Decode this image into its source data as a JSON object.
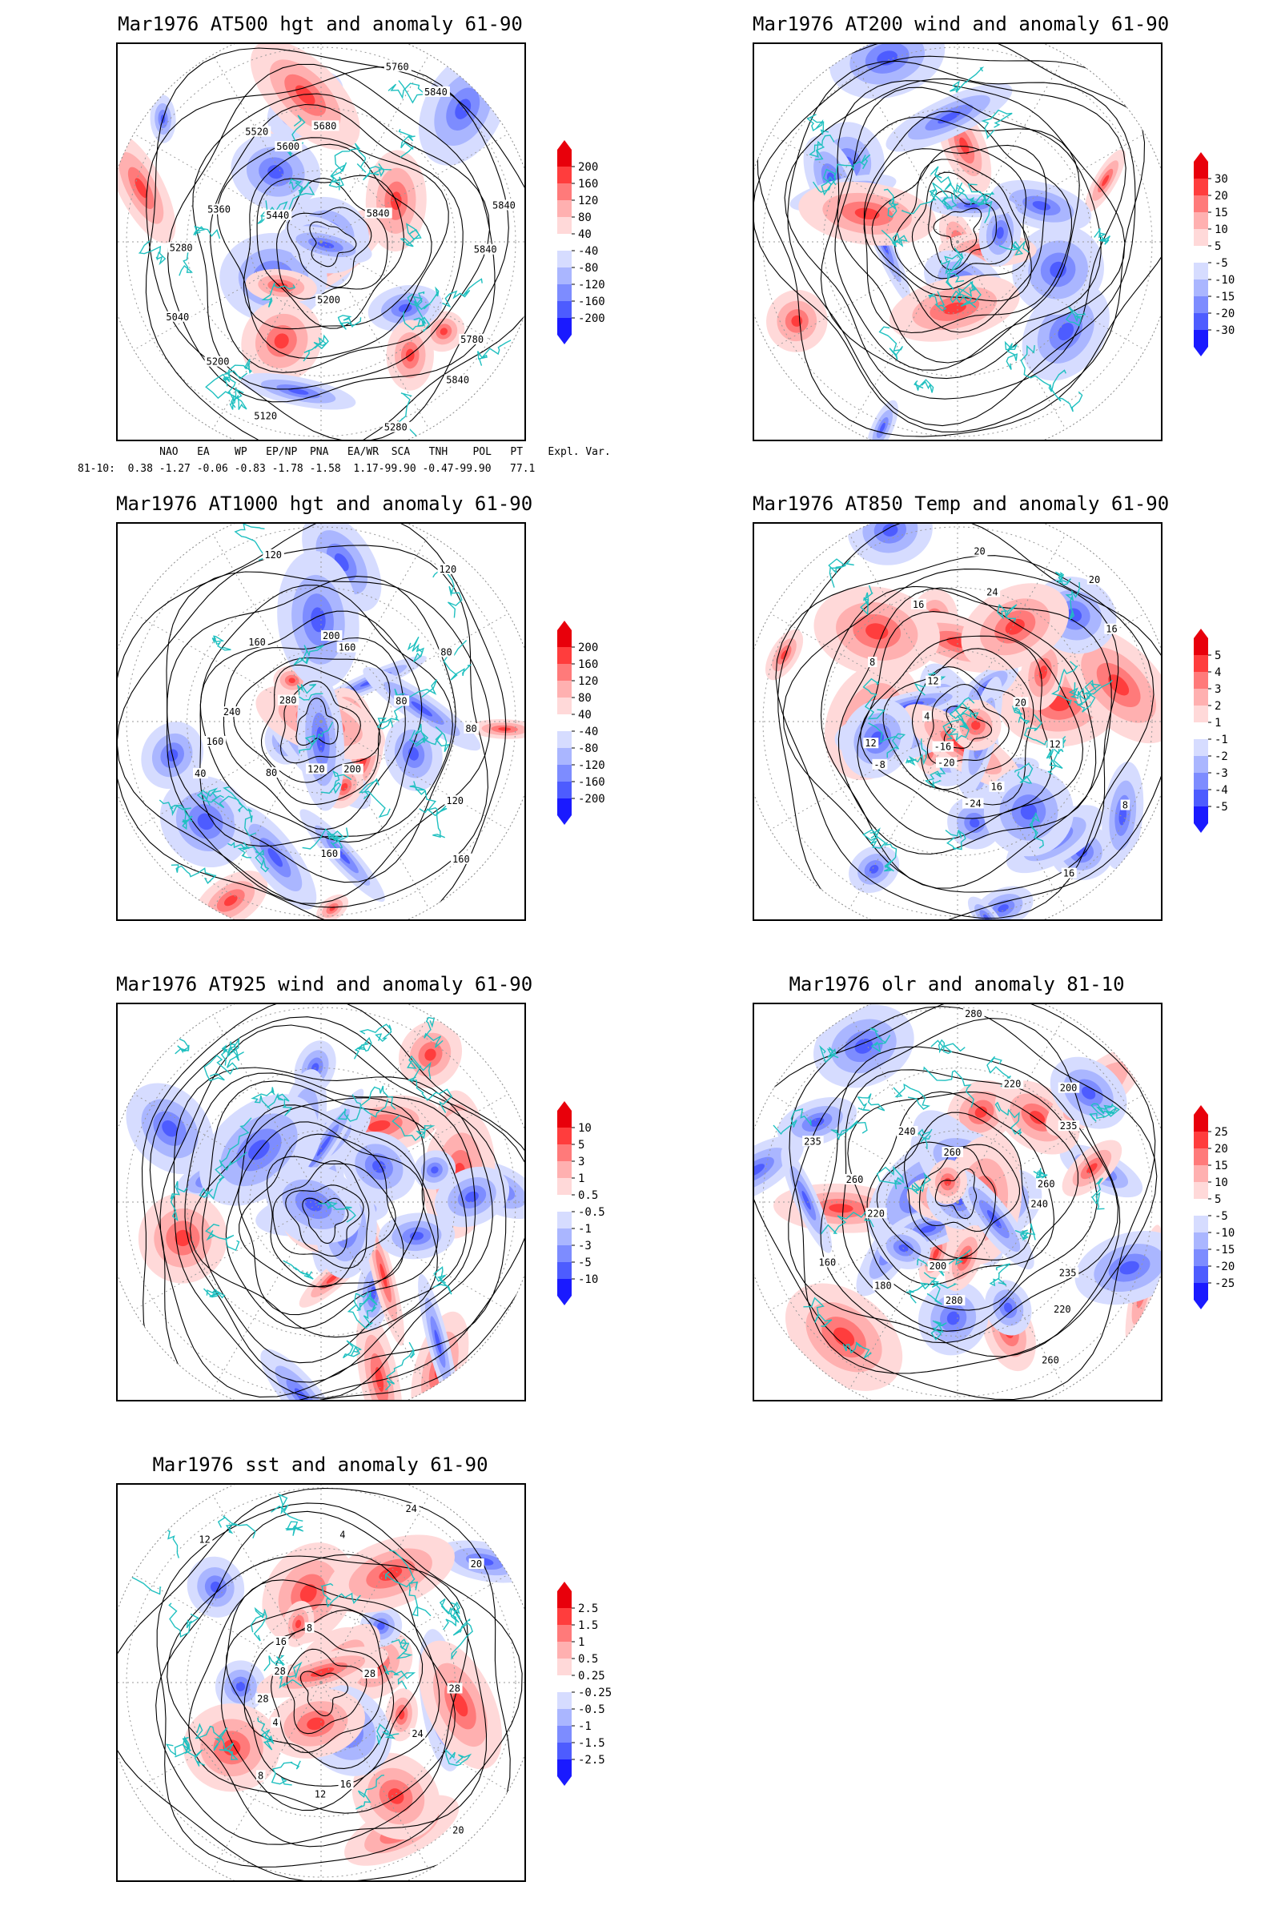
{
  "panels": [
    {
      "id": "p500",
      "title": "Mar1976 AT500 hgt and anomaly 61-90",
      "colorbar_labels": [
        "200",
        "160",
        "120",
        "80",
        "40",
        "-40",
        "-80",
        "-120",
        "-160",
        "-200"
      ],
      "contour_labels": [
        "5840",
        "5780",
        "5840",
        "5280",
        "5200",
        "5120",
        "5200",
        "5040",
        "5280",
        "5360",
        "5440",
        "5520",
        "5600",
        "5680",
        "5760",
        "5840",
        "5840",
        "5840"
      ],
      "variant": "hgt500"
    },
    {
      "id": "p200",
      "title": "Mar1976 AT200 wind and anomaly 61-90",
      "colorbar_labels": [
        "30",
        "20",
        "15",
        "10",
        "5",
        "-5",
        "-10",
        "-15",
        "-20",
        "-30"
      ],
      "contour_labels": [],
      "variant": "wind200"
    },
    {
      "id": "p1000",
      "title": "Mar1976 AT1000 hgt and anomaly 61-90",
      "colorbar_labels": [
        "200",
        "160",
        "120",
        "80",
        "40",
        "-40",
        "-80",
        "-120",
        "-160",
        "-200"
      ],
      "contour_labels": [
        "80",
        "120",
        "160",
        "200",
        "160",
        "120",
        "80",
        "40",
        "160",
        "240",
        "280",
        "160",
        "120",
        "200",
        "160",
        "120",
        "80",
        "80"
      ],
      "variant": "hgt1000"
    },
    {
      "id": "p850",
      "title": "Mar1976 AT850 Temp and anomaly 61-90",
      "colorbar_labels": [
        "5",
        "4",
        "3",
        "2",
        "1",
        "-1",
        "-2",
        "-3",
        "-4",
        "-5"
      ],
      "contour_labels": [
        "12",
        "8",
        "16",
        "16",
        "-24",
        "-20",
        "-16",
        "-8",
        "12",
        "4",
        "8",
        "12",
        "16",
        "20",
        "24",
        "20",
        "16",
        "20"
      ],
      "variant": "temp850"
    },
    {
      "id": "p925",
      "title": "Mar1976 AT925 wind and anomaly 61-90",
      "colorbar_labels": [
        "10",
        "5",
        "3",
        "1",
        "0.5",
        "-0.5",
        "-1",
        "-3",
        "-5",
        "-10"
      ],
      "contour_labels": [],
      "variant": "wind925"
    },
    {
      "id": "polr",
      "title": "Mar1976 olr and anomaly 81-10",
      "colorbar_labels": [
        "25",
        "20",
        "15",
        "10",
        "5",
        "-5",
        "-10",
        "-15",
        "-20",
        "-25"
      ],
      "contour_labels": [
        "240",
        "235",
        "220",
        "260",
        "280",
        "200",
        "180",
        "160",
        "220",
        "260",
        "235",
        "240",
        "260",
        "280",
        "220",
        "200",
        "235",
        "260"
      ],
      "variant": "olr"
    },
    {
      "id": "psst",
      "title": "Mar1976 sst and anomaly 61-90",
      "colorbar_labels": [
        "2.5",
        "1.5",
        "1",
        "0.5",
        "0.25",
        "-0.25",
        "-0.5",
        "-1",
        "-1.5",
        "-2.5"
      ],
      "contour_labels": [
        "28",
        "24",
        "20",
        "16",
        "12",
        "8",
        "4",
        "28",
        "28",
        "16",
        "12",
        "8",
        "4",
        "24",
        "20",
        "28"
      ],
      "variant": "sst"
    }
  ],
  "indices": {
    "header": "     NAO   EA    WP   EP/NP  PNA   EA/WR  SCA   TNH    POL   PT    Expl. Var.",
    "row": "81-10:  0.38 -1.27 -0.06 -0.83 -1.78 -1.58  1.17-99.90 -0.47-99.90   77.1"
  },
  "colors": {
    "red": [
      "#e8000b",
      "#ff3d3d",
      "#ff7a7a",
      "#ffb0b0",
      "#ffd9d9"
    ],
    "blue": [
      "#d6dcff",
      "#aab6ff",
      "#7d8cff",
      "#4d5cff",
      "#1a1aff"
    ],
    "coast": "#20c0c0"
  },
  "chart_data": [
    {
      "type": "heatmap",
      "title": "Mar1976 AT500 hgt and anomaly 61-90",
      "levels": [
        -200,
        -160,
        -120,
        -80,
        -40,
        40,
        80,
        120,
        160,
        200
      ]
    },
    {
      "type": "heatmap",
      "title": "Mar1976 AT200 wind and anomaly 61-90",
      "levels": [
        -30,
        -20,
        -15,
        -10,
        -5,
        5,
        10,
        15,
        20,
        30
      ]
    },
    {
      "type": "heatmap",
      "title": "Mar1976 AT1000 hgt and anomaly 61-90",
      "levels": [
        -200,
        -160,
        -120,
        -80,
        -40,
        40,
        80,
        120,
        160,
        200
      ]
    },
    {
      "type": "heatmap",
      "title": "Mar1976 AT850 Temp and anomaly 61-90",
      "levels": [
        -5,
        -4,
        -3,
        -2,
        -1,
        1,
        2,
        3,
        4,
        5
      ]
    },
    {
      "type": "heatmap",
      "title": "Mar1976 AT925 wind and anomaly 61-90",
      "levels": [
        -10,
        -5,
        -3,
        -1,
        -0.5,
        0.5,
        1,
        3,
        5,
        10
      ]
    },
    {
      "type": "heatmap",
      "title": "Mar1976 olr and anomaly 81-10",
      "levels": [
        -25,
        -20,
        -15,
        -10,
        -5,
        5,
        10,
        15,
        20,
        25
      ]
    },
    {
      "type": "heatmap",
      "title": "Mar1976 sst and anomaly 61-90",
      "levels": [
        -2.5,
        -1.5,
        -1,
        -0.5,
        -0.25,
        0.25,
        0.5,
        1,
        1.5,
        2.5
      ]
    }
  ]
}
